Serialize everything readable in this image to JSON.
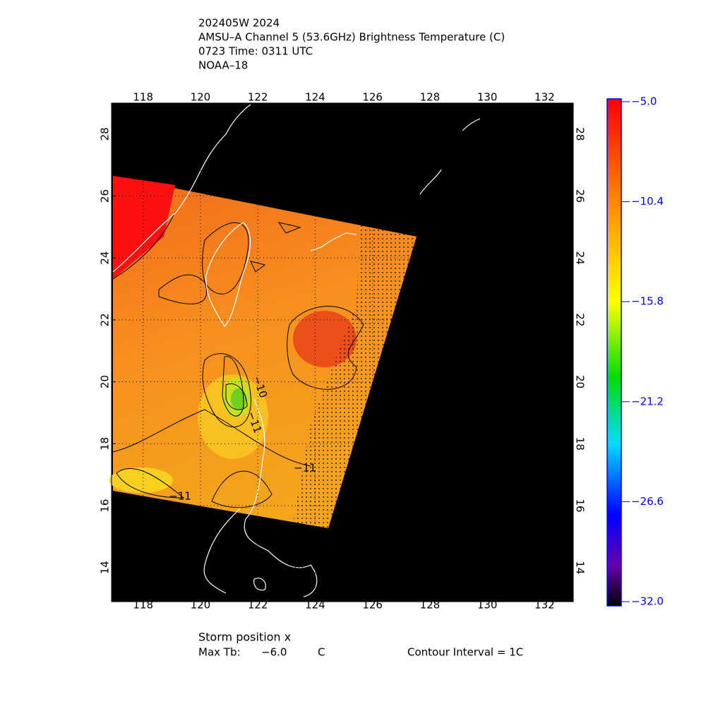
{
  "chart_data": {
    "type": "map",
    "title_lines": [
      "202405W 2024",
      "AMSU–A Channel 5 (53.6GHz) Brightness Temperature (C)",
      "0723 Time: 0311 UTC",
      "NOAA–18"
    ],
    "xlim": [
      116.9,
      133
    ],
    "ylim": [
      12.9,
      29
    ],
    "xticks": [
      118,
      120,
      122,
      124,
      126,
      128,
      130,
      132
    ],
    "yticks": [
      14,
      16,
      18,
      20,
      22,
      24,
      26,
      28
    ],
    "grid": true,
    "colorbar": {
      "lim": [
        -32,
        -5
      ],
      "ticks": [
        {
          "value": -5,
          "label": "−5.0"
        },
        {
          "value": -10.4,
          "label": "−10.4"
        },
        {
          "value": -15.8,
          "label": "−15.8"
        },
        {
          "value": -21.2,
          "label": "−21.2"
        },
        {
          "value": -26.6,
          "label": "−26.6"
        },
        {
          "value": -32,
          "label": "−32.0"
        }
      ],
      "color": "#0000ff"
    },
    "contour_labels": [
      "−10",
      "−11",
      "−11",
      "−11"
    ],
    "footer": {
      "storm_position": "Storm position x",
      "max_tb_label": "Max Tb:",
      "max_tb": "−6.0",
      "max_tb_unit": "C",
      "contour_interval": "Contour Interval = 1C"
    }
  }
}
